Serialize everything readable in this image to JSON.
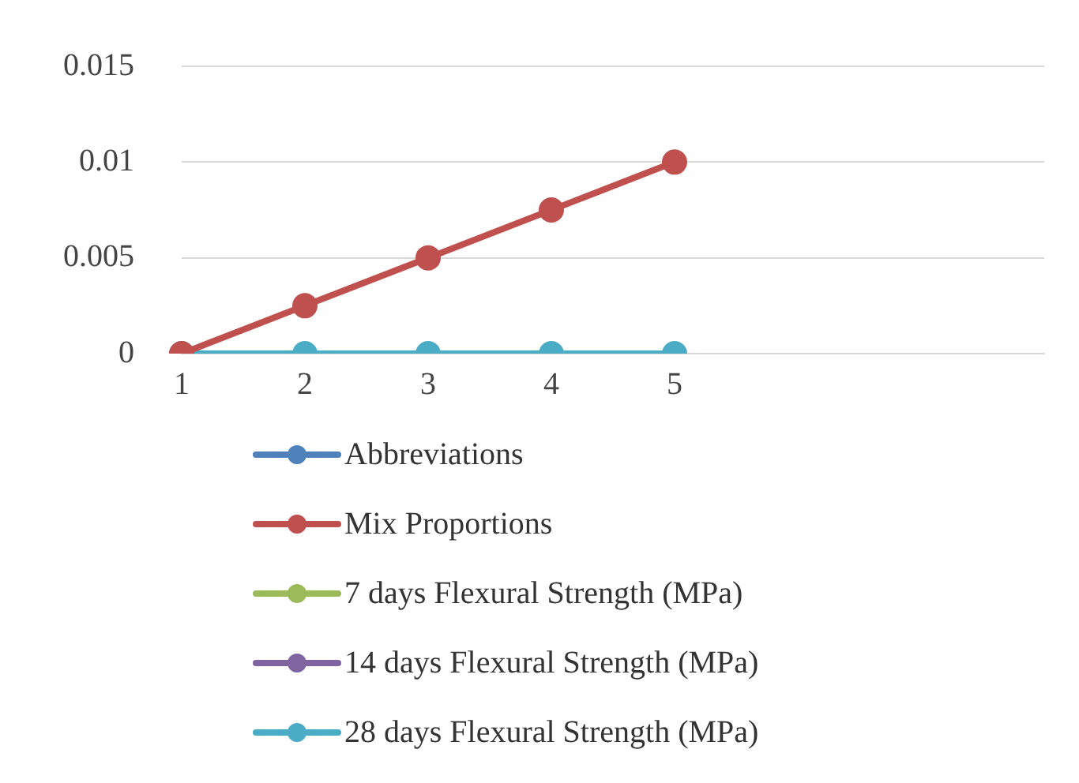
{
  "chart_data": {
    "type": "line",
    "categories": [
      "1",
      "2",
      "3",
      "4",
      "5",
      null,
      null,
      null
    ],
    "series": [
      {
        "name": "Abbreviations",
        "color": "#4f81bd",
        "values": [
          null,
          null,
          null,
          null,
          null,
          null,
          null,
          null
        ]
      },
      {
        "name": "Mix Proportions",
        "color": "#c0504d",
        "values": [
          0,
          0.0025,
          0.005,
          0.0075,
          0.01,
          null,
          null,
          null
        ]
      },
      {
        "name": "7 days Flexural Strength (MPa)",
        "color": "#9bbb59",
        "values": [
          null,
          null,
          null,
          null,
          null,
          null,
          null,
          null
        ]
      },
      {
        "name": "14 days Flexural Strength (MPa)",
        "color": "#8064a2",
        "values": [
          null,
          null,
          null,
          null,
          null,
          null,
          null,
          null
        ]
      },
      {
        "name": "28 days Flexural Strength (MPa)",
        "color": "#4bacc6",
        "values": [
          0,
          0,
          0,
          0,
          0,
          null,
          null,
          null
        ]
      }
    ],
    "ylim": [
      0,
      0.015
    ],
    "yticks": [
      0,
      0.005,
      0.01,
      0.015
    ],
    "grid": "y",
    "legend": "bottom",
    "marker": "circle",
    "line_style": "solid"
  }
}
